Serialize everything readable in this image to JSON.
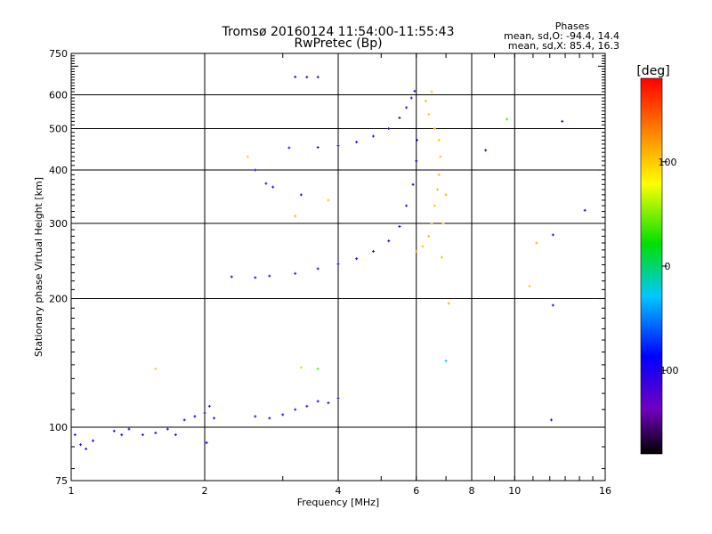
{
  "chart_data": {
    "type": "scatter",
    "title": "Tromsø 20160124 11:54:00-11:55:43",
    "subtitle": "RwPretec (Bp)",
    "xlabel": "Frequency [MHz]",
    "ylabel": "Stationary phase Virtual Height [km]",
    "x_scale": "log",
    "y_scale": "log",
    "xlim": [
      1,
      16
    ],
    "ylim": [
      75,
      750
    ],
    "x_ticks": [
      1,
      2,
      4,
      6,
      8,
      10,
      16
    ],
    "x_tick_labels": [
      "1",
      "2",
      "4",
      "6",
      "8",
      "10",
      "16"
    ],
    "x_grid": [
      2,
      4,
      6,
      8,
      10
    ],
    "y_ticks": [
      75,
      100,
      200,
      300,
      400,
      500,
      600,
      750
    ],
    "y_tick_labels": [
      "75",
      "100",
      "200",
      "300",
      "400",
      "500",
      "600",
      "750"
    ],
    "y_grid": [
      100,
      200,
      300,
      400,
      500,
      600
    ],
    "grid": true,
    "legend_placement": "top-right",
    "stats": {
      "heading": "Phases",
      "line_o": "mean, sd,O: -94.4, 14.4",
      "line_x": "mean, sd,X:  85.4, 16.3"
    },
    "colorbar": {
      "label": "[deg]",
      "range": [
        -180,
        180
      ],
      "ticks": [
        100,
        0,
        -100
      ],
      "tick_labels": [
        "100",
        "0",
        "-100"
      ]
    },
    "series": [
      {
        "points": [
          [
            1.02,
            96,
            -105
          ],
          [
            1.05,
            91,
            -110
          ],
          [
            1.08,
            89,
            -100
          ],
          [
            1.12,
            93,
            -95
          ],
          [
            1.25,
            98,
            -105
          ],
          [
            1.3,
            96,
            -100
          ],
          [
            1.35,
            99,
            -110
          ],
          [
            1.45,
            96,
            -105
          ],
          [
            1.55,
            97,
            -100
          ],
          [
            1.65,
            99,
            -110
          ],
          [
            1.72,
            96,
            -100
          ],
          [
            1.8,
            104,
            -105
          ],
          [
            1.9,
            106,
            -95
          ],
          [
            2.0,
            108,
            -100
          ],
          [
            2.05,
            112,
            -110
          ],
          [
            2.1,
            105,
            -100
          ],
          [
            2.02,
            92,
            -90
          ],
          [
            2.6,
            106,
            -105
          ],
          [
            2.8,
            105,
            -100
          ],
          [
            3.0,
            107,
            -95
          ],
          [
            3.2,
            110,
            -110
          ],
          [
            3.4,
            112,
            -100
          ],
          [
            3.6,
            115,
            -105
          ],
          [
            3.8,
            114,
            -100
          ],
          [
            4.0,
            117,
            -110
          ],
          [
            2.3,
            225,
            -100
          ],
          [
            2.6,
            224,
            -105
          ],
          [
            2.8,
            226,
            -110
          ],
          [
            3.2,
            229,
            -100
          ],
          [
            3.6,
            235,
            -105
          ],
          [
            4.0,
            241,
            -100
          ],
          [
            4.4,
            248,
            -95
          ],
          [
            4.8,
            258,
            -105
          ],
          [
            5.2,
            273,
            -100
          ],
          [
            5.5,
            295,
            -110
          ],
          [
            5.7,
            330,
            -105
          ],
          [
            5.9,
            370,
            -100
          ],
          [
            6.0,
            420,
            -95
          ],
          [
            6.02,
            470,
            -100
          ],
          [
            3.1,
            451,
            -105
          ],
          [
            3.6,
            452,
            -100
          ],
          [
            4.0,
            456,
            -110
          ],
          [
            4.4,
            465,
            -100
          ],
          [
            4.8,
            480,
            -105
          ],
          [
            5.2,
            500,
            -100
          ],
          [
            5.5,
            530,
            -95
          ],
          [
            5.7,
            560,
            -105
          ],
          [
            5.85,
            590,
            -100
          ],
          [
            5.95,
            612,
            -110
          ],
          [
            3.2,
            661,
            -110
          ],
          [
            3.4,
            660,
            -105
          ],
          [
            3.6,
            660,
            -100
          ],
          [
            2.6,
            400,
            -100
          ],
          [
            2.75,
            372,
            -105
          ],
          [
            2.85,
            365,
            -100
          ],
          [
            3.3,
            350,
            -105
          ],
          [
            6.0,
            258,
            110
          ],
          [
            6.2,
            265,
            100
          ],
          [
            6.4,
            280,
            105
          ],
          [
            6.5,
            300,
            110
          ],
          [
            6.6,
            330,
            100
          ],
          [
            6.7,
            360,
            105
          ],
          [
            6.75,
            390,
            110
          ],
          [
            6.8,
            430,
            100
          ],
          [
            6.75,
            470,
            105
          ],
          [
            6.6,
            500,
            110
          ],
          [
            6.4,
            540,
            100
          ],
          [
            6.3,
            580,
            105
          ],
          [
            6.5,
            610,
            100
          ],
          [
            6.9,
            300,
            95
          ],
          [
            7.0,
            350,
            110
          ],
          [
            6.85,
            250,
            105
          ],
          [
            9.6,
            526,
            40
          ],
          [
            8.6,
            445,
            -100
          ],
          [
            12.8,
            520,
            -110
          ],
          [
            14.4,
            322,
            -100
          ],
          [
            12.2,
            282,
            -110
          ],
          [
            12.2,
            193,
            -100
          ],
          [
            12.1,
            104,
            -105
          ],
          [
            7.1,
            195,
            110
          ],
          [
            7.0,
            143,
            -20
          ],
          [
            1.55,
            137,
            100
          ],
          [
            3.3,
            138,
            95
          ],
          [
            3.6,
            137,
            45
          ],
          [
            3.2,
            312,
            110
          ],
          [
            3.8,
            340,
            100
          ],
          [
            2.5,
            430,
            95
          ],
          [
            10.8,
            214,
            100
          ],
          [
            11.2,
            270,
            110
          ]
        ]
      }
    ]
  }
}
